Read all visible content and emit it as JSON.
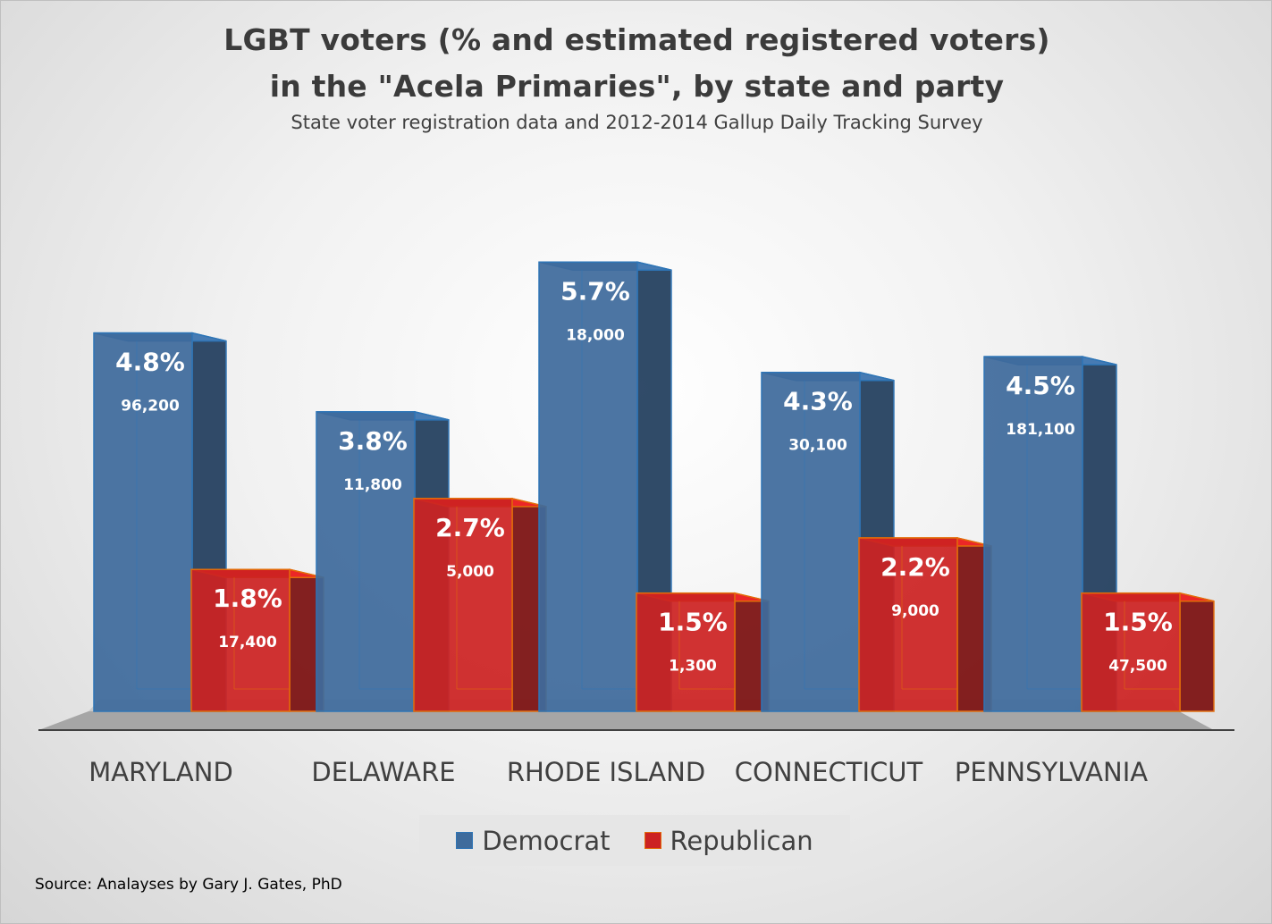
{
  "chart_data": {
    "type": "bar",
    "title": "LGBT voters (% and estimated registered voters)",
    "title_line2": "in the \"Acela Primaries\", by state and party",
    "subtitle": "State voter registration data and 2012-2014 Gallup Daily Tracking Survey",
    "categories": [
      "MARYLAND",
      "DELAWARE",
      "RHODE ISLAND",
      "CONNECTICUT",
      "PENNSYLVANIA"
    ],
    "series": [
      {
        "name": "Democrat",
        "color": "#3e6b9c",
        "edge": "#2e75b6",
        "values": [
          4.8,
          3.8,
          5.7,
          4.3,
          4.5
        ],
        "pct_labels": [
          "4.8%",
          "3.8%",
          "5.7%",
          "4.3%",
          "4.5%"
        ],
        "count_labels": [
          "96,200",
          "11,800",
          "18,000",
          "30,100",
          "181,100"
        ]
      },
      {
        "name": "Republican",
        "color": "#cc2222",
        "edge": "#e36c09",
        "values": [
          1.8,
          2.7,
          1.5,
          2.2,
          1.5
        ],
        "pct_labels": [
          "1.8%",
          "2.7%",
          "1.5%",
          "2.2%",
          "1.5%"
        ],
        "count_labels": [
          "17,400",
          "5,000",
          "1,300",
          "9,000",
          "47,500"
        ]
      }
    ],
    "legend_position": "bottom",
    "grid": false,
    "source": "Source: Analayses by Gary J. Gates, PhD"
  }
}
